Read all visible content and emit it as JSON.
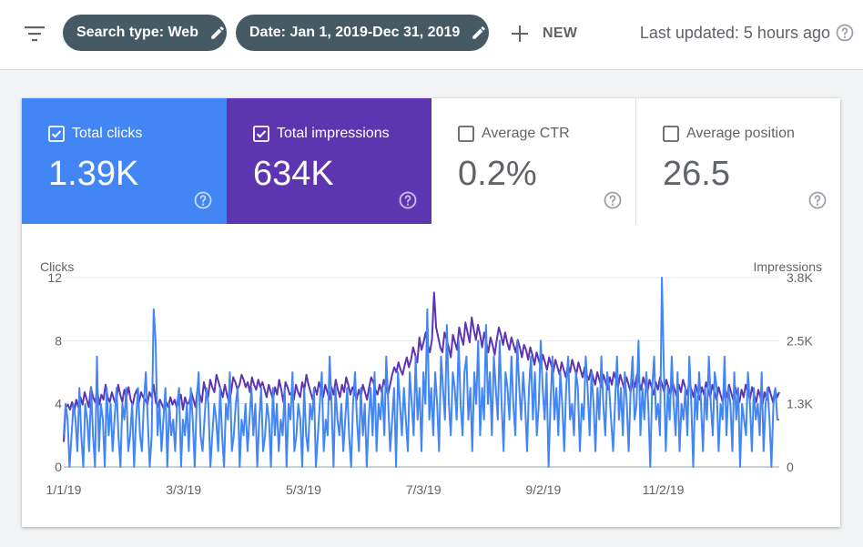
{
  "toolbar": {
    "filter_icon": "filter-list-icon",
    "chips": [
      {
        "label": "Search type: Web",
        "icon": "pencil-icon"
      },
      {
        "label": "Date: Jan 1, 2019-Dec 31, 2019",
        "icon": "pencil-icon"
      }
    ],
    "new_label": "NEW",
    "last_updated": "Last updated: 5 hours ago",
    "chip_color": "#455a64"
  },
  "metrics": [
    {
      "label": "Total clicks",
      "value": "1.39K",
      "checked": true,
      "color": "#4285f4"
    },
    {
      "label": "Total impressions",
      "value": "634K",
      "checked": true,
      "color": "#5e35b1"
    },
    {
      "label": "Average CTR",
      "value": "0.2%",
      "checked": false,
      "color": "#ffffff"
    },
    {
      "label": "Average position",
      "value": "26.5",
      "checked": false,
      "color": "#ffffff"
    }
  ],
  "chart_data": {
    "type": "line",
    "xlabel": "",
    "left_axis": {
      "title": "Clicks",
      "ticks": [
        "0",
        "4",
        "8",
        "12"
      ],
      "range": [
        0,
        12
      ]
    },
    "right_axis": {
      "title": "Impressions",
      "ticks": [
        "0",
        "1.3K",
        "2.5K",
        "3.8K"
      ],
      "range": [
        0,
        3800
      ]
    },
    "x_ticks": [
      {
        "label": "1/1/19",
        "day": 0
      },
      {
        "label": "3/3/19",
        "day": 61
      },
      {
        "label": "5/3/19",
        "day": 122
      },
      {
        "label": "7/3/19",
        "day": 183
      },
      {
        "label": "9/2/19",
        "day": 244
      },
      {
        "label": "11/2/19",
        "day": 305
      }
    ],
    "series": [
      {
        "name": "Clicks",
        "axis": "left",
        "color": "#4285f4",
        "values": [
          2,
          4,
          3,
          0,
          2,
          4,
          3,
          1,
          5,
          2,
          0,
          4,
          3,
          1,
          5,
          2,
          0,
          7,
          1,
          4,
          3,
          0,
          5,
          2,
          4,
          1,
          3,
          5,
          2,
          0,
          4,
          3,
          5,
          1,
          2,
          4,
          0,
          3,
          5,
          2,
          1,
          4,
          6,
          3,
          0,
          2,
          10,
          8,
          2,
          4,
          1,
          3,
          5,
          0,
          4,
          2,
          3,
          1,
          4,
          5,
          0,
          3,
          2,
          4,
          1,
          5,
          3,
          0,
          4,
          6,
          2,
          1,
          3,
          5,
          4,
          0,
          2,
          4,
          3,
          1,
          5,
          2,
          0,
          4,
          3,
          6,
          1,
          2,
          4,
          5,
          0,
          3,
          2,
          4,
          1,
          3,
          5,
          2,
          4,
          0,
          3,
          5,
          1,
          2,
          4,
          3,
          0,
          5,
          2,
          4,
          1,
          3,
          2,
          5,
          0,
          4,
          3,
          6,
          1,
          2,
          4,
          3,
          0,
          5,
          2,
          1,
          4,
          3,
          5,
          0,
          2,
          4,
          6,
          1,
          3,
          2,
          7,
          4,
          0,
          5,
          3,
          2,
          4,
          1,
          3,
          5,
          2,
          0,
          4,
          6,
          3,
          1,
          5,
          2,
          4,
          0,
          3,
          5,
          2,
          6,
          1,
          4,
          3,
          5,
          2,
          7,
          4,
          1,
          3,
          5,
          0,
          6,
          4,
          2,
          5,
          3,
          1,
          6,
          4,
          2,
          7,
          3,
          5,
          1,
          6,
          4,
          10,
          3,
          5,
          2,
          6,
          4,
          1,
          7,
          5,
          3,
          9,
          4,
          2,
          6,
          5,
          3,
          8,
          4,
          2,
          6,
          7,
          3,
          5,
          1,
          6,
          4,
          8,
          2,
          5,
          3,
          9,
          4,
          6,
          2,
          7,
          5,
          3,
          8,
          4,
          1,
          6,
          5,
          3,
          7,
          4,
          2,
          8,
          5,
          3,
          6,
          4,
          1,
          5,
          7,
          3,
          6,
          2,
          4,
          8,
          5,
          3,
          6,
          0,
          4,
          7,
          3,
          5,
          2,
          6,
          4,
          1,
          5,
          7,
          3,
          4,
          2,
          6,
          5,
          1,
          4,
          3,
          7,
          5,
          2,
          6,
          4,
          1,
          5,
          3,
          7,
          4,
          2,
          6,
          5,
          3,
          1,
          4,
          7,
          3,
          5,
          2,
          6,
          4,
          1,
          5,
          7,
          3,
          4,
          8,
          2,
          5,
          3,
          6,
          4,
          0,
          5,
          7,
          3,
          4,
          2,
          12,
          6,
          1,
          5,
          3,
          7,
          4,
          2,
          6,
          1,
          4,
          3,
          5,
          2,
          7,
          4,
          0,
          5,
          3,
          6,
          4,
          1,
          5,
          3,
          7,
          4,
          2,
          6,
          5,
          1,
          4,
          3,
          7,
          2,
          5,
          4,
          1,
          6,
          3,
          5,
          0,
          4,
          3,
          2,
          6,
          4,
          1,
          5,
          3,
          4,
          2,
          6,
          1,
          4,
          5,
          3,
          0,
          4,
          5,
          3,
          3
        ]
      },
      {
        "name": "Impressions",
        "axis": "right",
        "color": "#5e35b1",
        "values": [
          500,
          1200,
          1250,
          1150,
          1300,
          1100,
          1350,
          1200,
          1400,
          1250,
          1500,
          1350,
          1200,
          1600,
          1400,
          1300,
          1550,
          1250,
          1450,
          1350,
          1650,
          1400,
          1300,
          1500,
          1350,
          1250,
          1650,
          1450,
          1300,
          1550,
          1400,
          1600,
          1350,
          1250,
          1450,
          1550,
          1300,
          1500,
          1400,
          1350,
          1250,
          1500,
          1400,
          1650,
          1300,
          1200,
          1350,
          1250,
          1150,
          1300,
          1200,
          1400,
          1250,
          1350,
          1200,
          1300,
          1450,
          1150,
          1400,
          1250,
          1300,
          1500,
          1350,
          1200,
          1600,
          1450,
          1300,
          1700,
          1500,
          1400,
          1750,
          1600,
          1500,
          1850,
          1700,
          1550,
          1400,
          1650,
          1450,
          1300,
          1500,
          1800,
          1700,
          1550,
          1650,
          1850,
          1750,
          1600,
          1700,
          1500,
          1800,
          1650,
          1550,
          1750,
          1600,
          1700,
          1550,
          1400,
          1650,
          1500,
          1350,
          1600,
          1450,
          1750,
          1550,
          1300,
          1700,
          1600,
          1450,
          1500,
          1350,
          1650,
          1500,
          1400,
          1700,
          1550,
          1850,
          1650,
          1500,
          1350,
          1600,
          1450,
          1700,
          1550,
          1400,
          1650,
          1500,
          1350,
          1600,
          1450,
          1750,
          1550,
          1400,
          1650,
          1500,
          1800,
          1650,
          1450,
          1600,
          1500,
          1350,
          1550,
          1400,
          1650,
          1500,
          1350,
          1600,
          1800,
          1700,
          1550,
          1450,
          1650,
          1500,
          1750,
          1600,
          1450,
          1650,
          1850,
          2000,
          1900,
          2100,
          1950,
          1850,
          2050,
          2200,
          2000,
          2150,
          2400,
          2250,
          2100,
          2600,
          2350,
          2500,
          2700,
          2450,
          2300,
          2550,
          3500,
          2800,
          2600,
          2400,
          2300,
          2700,
          2550,
          2400,
          2200,
          2650,
          2500,
          2350,
          2800,
          2600,
          2450,
          2900,
          2700,
          2500,
          3000,
          2750,
          2550,
          2850,
          2650,
          2400,
          2700,
          2500,
          2300,
          2600,
          2450,
          2250,
          2550,
          2800,
          2650,
          2450,
          2700,
          2500,
          2350,
          2600,
          2450,
          2300,
          2550,
          2400,
          2200,
          2450,
          2350,
          2150,
          2400,
          2250,
          2050,
          2300,
          2150,
          2000,
          2250,
          2100,
          1950,
          2200,
          2050,
          1900,
          2150,
          2000,
          1850,
          2100,
          1950,
          1800,
          2050,
          1900,
          2150,
          2000,
          1850,
          2100,
          1950,
          1800,
          2000,
          1850,
          1750,
          1950,
          1800,
          1650,
          1900,
          1750,
          1600,
          1850,
          1700,
          1550,
          1800,
          1650,
          1900,
          1750,
          1600,
          1850,
          1700,
          1550,
          1800,
          1650,
          1500,
          1750,
          1600,
          1850,
          1700,
          1550,
          1800,
          1650,
          1500,
          1750,
          1600,
          1450,
          1700,
          1550,
          1800,
          1650,
          1500,
          1750,
          1600,
          1450,
          1700,
          1550,
          1400,
          1650,
          1500,
          1750,
          1600,
          1450,
          1700,
          1550,
          1400,
          1650,
          1500,
          1350,
          1600,
          1450,
          1700,
          1550,
          1400,
          1650,
          1500,
          1350,
          1600,
          1450,
          1300,
          1550,
          1400,
          1650,
          1500,
          1350,
          1600,
          1450,
          1300,
          1550,
          1400,
          1650,
          1500,
          1350,
          1600,
          1450,
          1300,
          1550,
          1400,
          1250,
          1500,
          1350,
          1600,
          1450,
          1300,
          1550,
          1400,
          1500
        ]
      }
    ]
  }
}
